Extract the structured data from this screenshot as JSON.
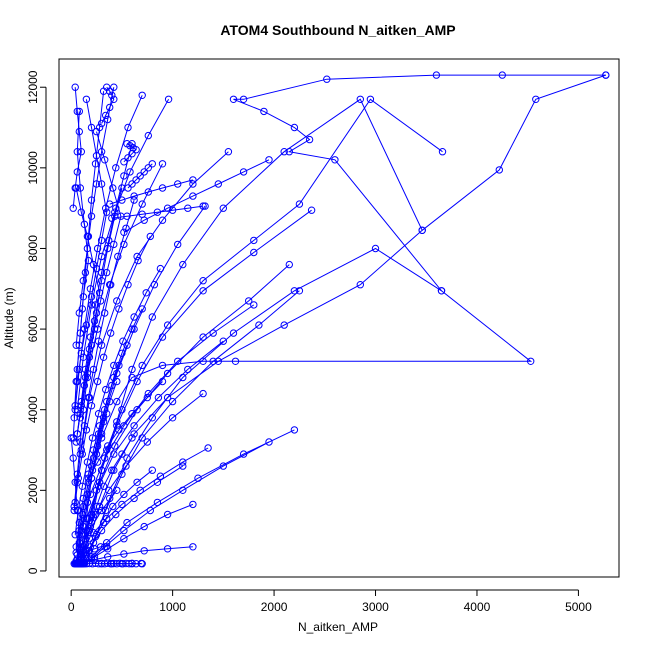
{
  "chart_data": {
    "type": "line",
    "title": "ATOM4 Southbound N_aitken_AMP",
    "xlabel": "N_aitken_AMP",
    "ylabel": "Altitude (m)",
    "xlim": [
      -120,
      5400
    ],
    "ylim": [
      -150,
      12700
    ],
    "x_ticks": [
      0,
      1000,
      2000,
      3000,
      4000,
      5000
    ],
    "y_ticks": [
      0,
      2000,
      4000,
      6000,
      8000,
      10000,
      12000
    ],
    "grid": false,
    "legend": "none",
    "line_style": "line with open circle markers",
    "colors": {
      "series": "#0000ff",
      "axes": "#000000"
    },
    "series": [
      {
        "x": [
          5270,
          4250,
          3600,
          2520,
          1700,
          1600,
          1900,
          2200,
          2350,
          2150,
          2600,
          3650,
          4530,
          1620,
          1300,
          900,
          600,
          450,
          300,
          200,
          150,
          120,
          100
        ],
        "y": [
          12300,
          12300,
          12300,
          12200,
          11700,
          11700,
          11400,
          11000,
          10700,
          10400,
          10200,
          6950,
          5200,
          5200,
          5200,
          5100,
          4800,
          4200,
          3300,
          2300,
          1300,
          500,
          180
        ]
      },
      {
        "x": [
          5270,
          4580,
          4220,
          3460,
          2850,
          2100,
          1500,
          1100,
          800,
          600,
          450,
          300,
          200,
          120,
          80
        ],
        "y": [
          12300,
          11700,
          9950,
          8450,
          11700,
          10400,
          9000,
          7600,
          6300,
          5000,
          3700,
          2500,
          1200,
          400,
          180
        ]
      },
      {
        "x": [
          3660,
          2950,
          2250,
          1800,
          1300,
          950,
          700,
          500,
          350,
          250,
          150,
          100,
          60
        ],
        "y": [
          10400,
          11700,
          9100,
          8200,
          7200,
          6100,
          5100,
          4000,
          3000,
          2000,
          1000,
          300,
          180
        ]
      },
      {
        "x": [
          3650,
          3000,
          2200,
          1600,
          1100,
          800,
          550,
          380,
          250,
          150,
          90
        ],
        "y": [
          6950,
          8000,
          6950,
          5900,
          4800,
          3800,
          2800,
          1800,
          900,
          400,
          180
        ]
      },
      {
        "x": [
          3460,
          2850,
          2100,
          1450,
          950,
          620,
          420,
          280,
          180,
          100,
          60
        ],
        "y": [
          8450,
          7100,
          6100,
          5200,
          4300,
          3400,
          2500,
          1600,
          800,
          350,
          180
        ]
      },
      {
        "x": [
          2370,
          1800,
          1300,
          900,
          650,
          450,
          300,
          200,
          120,
          70
        ],
        "y": [
          8950,
          7900,
          6950,
          5800,
          4700,
          3600,
          2500,
          1400,
          600,
          180
        ]
      },
      {
        "x": [
          2250,
          1850,
          1400,
          1000,
          700,
          500,
          340,
          220,
          130
        ],
        "y": [
          6950,
          6100,
          5200,
          4200,
          3300,
          2400,
          1500,
          700,
          180
        ]
      },
      {
        "x": [
          2150,
          1750,
          1300,
          950,
          650,
          430,
          280,
          170,
          90,
          50
        ],
        "y": [
          7600,
          6700,
          5800,
          4900,
          4000,
          3100,
          2200,
          1300,
          500,
          180
        ]
      },
      {
        "x": [
          1950,
          1500,
          1100,
          780,
          520,
          330,
          200,
          110
        ],
        "y": [
          3200,
          2600,
          2000,
          1500,
          1000,
          600,
          300,
          180
        ]
      },
      {
        "x": [
          2200,
          1700,
          1250,
          850,
          550,
          350,
          200,
          100
        ],
        "y": [
          3500,
          2900,
          2300,
          1700,
          1200,
          700,
          350,
          180
        ]
      },
      {
        "x": [
          1550,
          1200,
          900,
          650,
          450,
          300,
          180,
          100
        ],
        "y": [
          10400,
          9600,
          8700,
          7800,
          6700,
          5600,
          4300,
          3000
        ]
      },
      {
        "x": [
          1320,
          1050,
          820,
          620,
          450,
          320,
          200,
          110,
          60
        ],
        "y": [
          9050,
          8100,
          7100,
          6000,
          4900,
          3800,
          2600,
          1400,
          400
        ]
      },
      {
        "x": [
          1200,
          950,
          720,
          520,
          360,
          230,
          130,
          70
        ],
        "y": [
          1650,
          1400,
          1100,
          800,
          550,
          350,
          200,
          180
        ]
      },
      {
        "x": [
          1200,
          950,
          720,
          520,
          360,
          230,
          130,
          70
        ],
        "y": [
          600,
          550,
          500,
          420,
          350,
          280,
          220,
          180
        ]
      },
      {
        "x": [
          960,
          760,
          580,
          430,
          300,
          200,
          120,
          60
        ],
        "y": [
          11700,
          10800,
          9900,
          8900,
          7800,
          6600,
          5300,
          4000
        ]
      },
      {
        "x": [
          900,
          700,
          520,
          380,
          260,
          160,
          90
        ],
        "y": [
          10100,
          9100,
          8100,
          7100,
          6000,
          4900,
          3800
        ]
      },
      {
        "x": [
          1100,
          850,
          620,
          440,
          300,
          190,
          110
        ],
        "y": [
          2600,
          2200,
          1800,
          1400,
          1000,
          600,
          250
        ]
      },
      {
        "x": [
          1300,
          1000,
          750,
          540,
          370,
          240,
          140
        ],
        "y": [
          4400,
          3800,
          3200,
          2600,
          2000,
          1400,
          800
        ]
      },
      {
        "x": [
          1500,
          1150,
          860,
          620,
          420,
          270,
          150
        ],
        "y": [
          5700,
          5000,
          4300,
          3600,
          2900,
          2100,
          1300
        ]
      },
      {
        "x": [
          1800,
          1400,
          1050,
          760,
          520,
          330,
          190,
          100
        ],
        "y": [
          6600,
          5900,
          5200,
          4400,
          3600,
          2800,
          1900,
          1000
        ]
      },
      {
        "x": [
          700,
          560,
          440,
          340,
          260,
          190,
          130,
          80,
          40
        ],
        "y": [
          11800,
          11000,
          10000,
          9000,
          8000,
          7000,
          6000,
          5000,
          4000
        ]
      },
      {
        "x": [
          420,
          360,
          300,
          250,
          200,
          160,
          120,
          80,
          50
        ],
        "y": [
          12000,
          11200,
          10400,
          9600,
          8800,
          8000,
          7200,
          6400,
          5600
        ]
      },
      {
        "x": [
          320,
          280,
          240,
          200,
          170,
          140,
          110,
          80,
          50,
          30
        ],
        "y": [
          11900,
          11000,
          10100,
          9200,
          8300,
          7400,
          6500,
          5600,
          4700,
          3800
        ]
      },
      {
        "x": [
          600,
          520,
          440,
          370,
          300,
          240,
          190,
          140,
          100,
          60
        ],
        "y": [
          10600,
          9800,
          9000,
          8200,
          7400,
          6600,
          5800,
          5000,
          4200,
          3400
        ]
      },
      {
        "x": [
          500,
          430,
          360,
          300,
          250,
          200,
          160,
          120,
          90,
          60,
          30
        ],
        "y": [
          9500,
          8800,
          8000,
          7200,
          6400,
          5600,
          4800,
          4000,
          3200,
          2400,
          1600
        ]
      },
      {
        "x": [
          80,
          60,
          90,
          130,
          170,
          120,
          90,
          60,
          40,
          20
        ],
        "y": [
          11400,
          10400,
          9500,
          8600,
          7700,
          6800,
          5900,
          5000,
          4100,
          3300
        ]
      },
      {
        "x": [
          50,
          100,
          160,
          220,
          280,
          230,
          180,
          140,
          100,
          60
        ],
        "y": [
          9500,
          8900,
          8300,
          7600,
          6900,
          6200,
          5500,
          4800,
          4100,
          3400
        ]
      },
      {
        "x": [
          150,
          200,
          250,
          300,
          350,
          300,
          250,
          200,
          150,
          100,
          60
        ],
        "y": [
          11700,
          11000,
          10300,
          9600,
          8900,
          8200,
          7500,
          6800,
          6100,
          5400,
          4700
        ]
      },
      {
        "x": [
          250,
          330,
          410,
          490,
          420,
          350,
          290,
          230,
          180,
          130,
          90,
          50
        ],
        "y": [
          10900,
          10200,
          9500,
          8800,
          8100,
          7400,
          6700,
          6000,
          5300,
          4600,
          3900,
          3200
        ]
      },
      {
        "x": [
          620,
          540,
          460,
          390,
          330,
          270,
          220,
          170,
          130,
          90,
          60,
          30
        ],
        "y": [
          9200,
          8500,
          7800,
          7100,
          6400,
          5700,
          5000,
          4300,
          3600,
          2900,
          2200,
          1500
        ]
      },
      {
        "x": [
          780,
          660,
          560,
          470,
          390,
          320,
          260,
          200,
          150,
          110,
          70,
          40
        ],
        "y": [
          8300,
          7700,
          7100,
          6500,
          5900,
          5300,
          4700,
          4100,
          3500,
          2900,
          2300,
          1700
        ]
      },
      {
        "x": [
          880,
          740,
          620,
          510,
          420,
          340,
          270,
          210,
          160,
          110,
          70,
          40
        ],
        "y": [
          7500,
          6900,
          6300,
          5700,
          5100,
          4500,
          3900,
          3300,
          2700,
          2100,
          1500,
          900
        ]
      },
      {
        "x": [
          700,
          600,
          500,
          420,
          350,
          280,
          220,
          170,
          120,
          80,
          50
        ],
        "y": [
          6500,
          6000,
          5400,
          4800,
          4200,
          3600,
          3000,
          2400,
          1800,
          1200,
          600
        ]
      },
      {
        "x": [
          550,
          470,
          400,
          330,
          270,
          220,
          170,
          120,
          80,
          50
        ],
        "y": [
          5600,
          5100,
          4600,
          4000,
          3400,
          2800,
          2200,
          1600,
          1000,
          450
        ]
      },
      {
        "x": [
          450,
          380,
          320,
          260,
          210,
          160,
          120,
          80,
          50
        ],
        "y": [
          4700,
          4200,
          3700,
          3100,
          2500,
          1900,
          1300,
          700,
          250
        ]
      },
      {
        "x": [
          350,
          300,
          250,
          200,
          160,
          120,
          80,
          50
        ],
        "y": [
          3900,
          3400,
          2900,
          2300,
          1700,
          1100,
          550,
          200
        ]
      },
      {
        "x": [
          600,
          500,
          400,
          320,
          250,
          190,
          140,
          90,
          50
        ],
        "y": [
          3300,
          2900,
          2500,
          2100,
          1600,
          1100,
          650,
          300,
          180
        ]
      },
      {
        "x": [
          800,
          650,
          520,
          410,
          320,
          240,
          170,
          110,
          60
        ],
        "y": [
          2500,
          2200,
          1900,
          1600,
          1200,
          850,
          500,
          250,
          180
        ]
      },
      {
        "x": [
          450,
          300,
          180,
          100,
          60,
          40
        ],
        "y": [
          2000,
          1500,
          1000,
          600,
          300,
          180
        ]
      },
      {
        "x": [
          300,
          400,
          500,
          600,
          700
        ],
        "y": [
          180,
          180,
          180,
          180,
          180
        ]
      },
      {
        "x": [
          30,
          60,
          90,
          120,
          150,
          180,
          210,
          240,
          270,
          300,
          330,
          360,
          390,
          420,
          450,
          480,
          510,
          540,
          570,
          600,
          640,
          690
        ],
        "y": [
          180,
          185,
          180,
          190,
          180,
          185,
          180,
          190,
          180,
          185,
          180,
          190,
          180,
          185,
          180,
          190,
          180,
          185,
          180,
          190,
          180,
          185
        ]
      },
      {
        "x": [
          100,
          140,
          180,
          230,
          290,
          350
        ],
        "y": [
          400,
          450,
          500,
          550,
          600,
          600
        ]
      },
      {
        "x": [
          0,
          20,
          40,
          60,
          80,
          100,
          120
        ],
        "y": [
          3300,
          2800,
          2200,
          1500,
          900,
          400,
          180
        ]
      },
      {
        "x": [
          40,
          60,
          80,
          100,
          60,
          40,
          20
        ],
        "y": [
          12000,
          11400,
          10900,
          10400,
          9900,
          9500,
          9000
        ]
      },
      {
        "x": [
          350,
          380,
          400,
          420,
          380,
          340,
          300
        ],
        "y": [
          12000,
          11900,
          11800,
          11700,
          11500,
          11300,
          11100
        ]
      },
      {
        "x": [
          550,
          580,
          610,
          640,
          600,
          560,
          520
        ],
        "y": [
          10600,
          10550,
          10500,
          10450,
          10350,
          10250,
          10150
        ]
      },
      {
        "x": [
          800,
          760,
          720,
          680,
          640,
          600,
          560
        ],
        "y": [
          10100,
          10000,
          9900,
          9800,
          9700,
          9600,
          9500
        ]
      },
      {
        "x": [
          1300,
          1150,
          1000,
          850,
          700,
          550,
          400
        ],
        "y": [
          9050,
          9000,
          8950,
          8900,
          8850,
          8800,
          8750
        ]
      },
      {
        "x": [
          1200,
          1050,
          900,
          760,
          620,
          500,
          380
        ],
        "y": [
          9700,
          9600,
          9500,
          9400,
          9300,
          9200,
          9100
        ]
      },
      {
        "x": [
          1950,
          1700,
          1450,
          1200,
          950,
          720,
          520
        ],
        "y": [
          10200,
          9900,
          9600,
          9300,
          9000,
          8700,
          8400
        ]
      },
      {
        "x": [
          1350,
          1100,
          880,
          680,
          500,
          350,
          220
        ],
        "y": [
          3050,
          2700,
          2350,
          2000,
          1650,
          1300,
          950
        ]
      },
      {
        "x": [
          900,
          750,
          600,
          470,
          360,
          260,
          170
        ],
        "y": [
          4700,
          4300,
          3900,
          3500,
          3100,
          2700,
          2300
        ]
      }
    ]
  }
}
